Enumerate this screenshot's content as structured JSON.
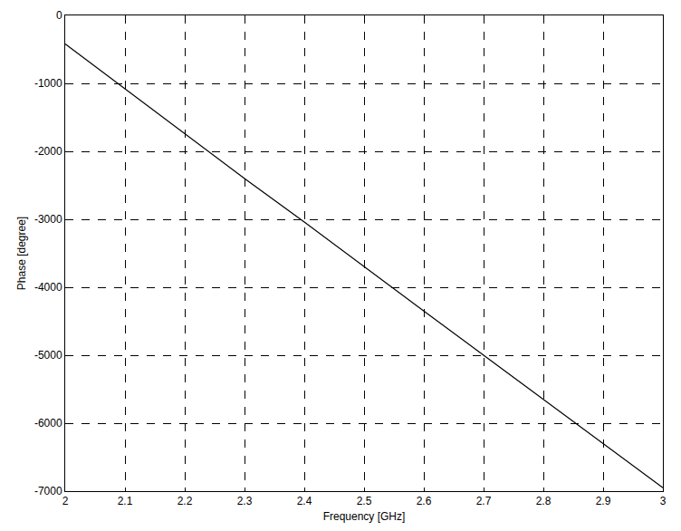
{
  "chart_data": {
    "type": "line",
    "x_label": "Frequency [GHz]",
    "y_label": "Phase [degree]",
    "x": [
      2.0,
      2.1,
      2.2,
      2.3,
      2.4,
      2.5,
      2.6,
      2.7,
      2.8,
      2.9,
      3.0
    ],
    "values": [
      -420,
      -1080,
      -1750,
      -2400,
      -3040,
      -3700,
      -4350,
      -5000,
      -5650,
      -6300,
      -6950
    ],
    "color": "#000000",
    "line_style": "solid",
    "xlim": [
      2,
      3
    ],
    "xticks": [
      2,
      2.1,
      2.2,
      2.3,
      2.4,
      2.5,
      2.6,
      2.7,
      2.8,
      2.9,
      3
    ],
    "ylim": [
      -7000,
      0
    ],
    "yticks": [
      -7000,
      -6000,
      -5000,
      -4000,
      -3000,
      -2000,
      -1000,
      0
    ],
    "grid": true
  }
}
